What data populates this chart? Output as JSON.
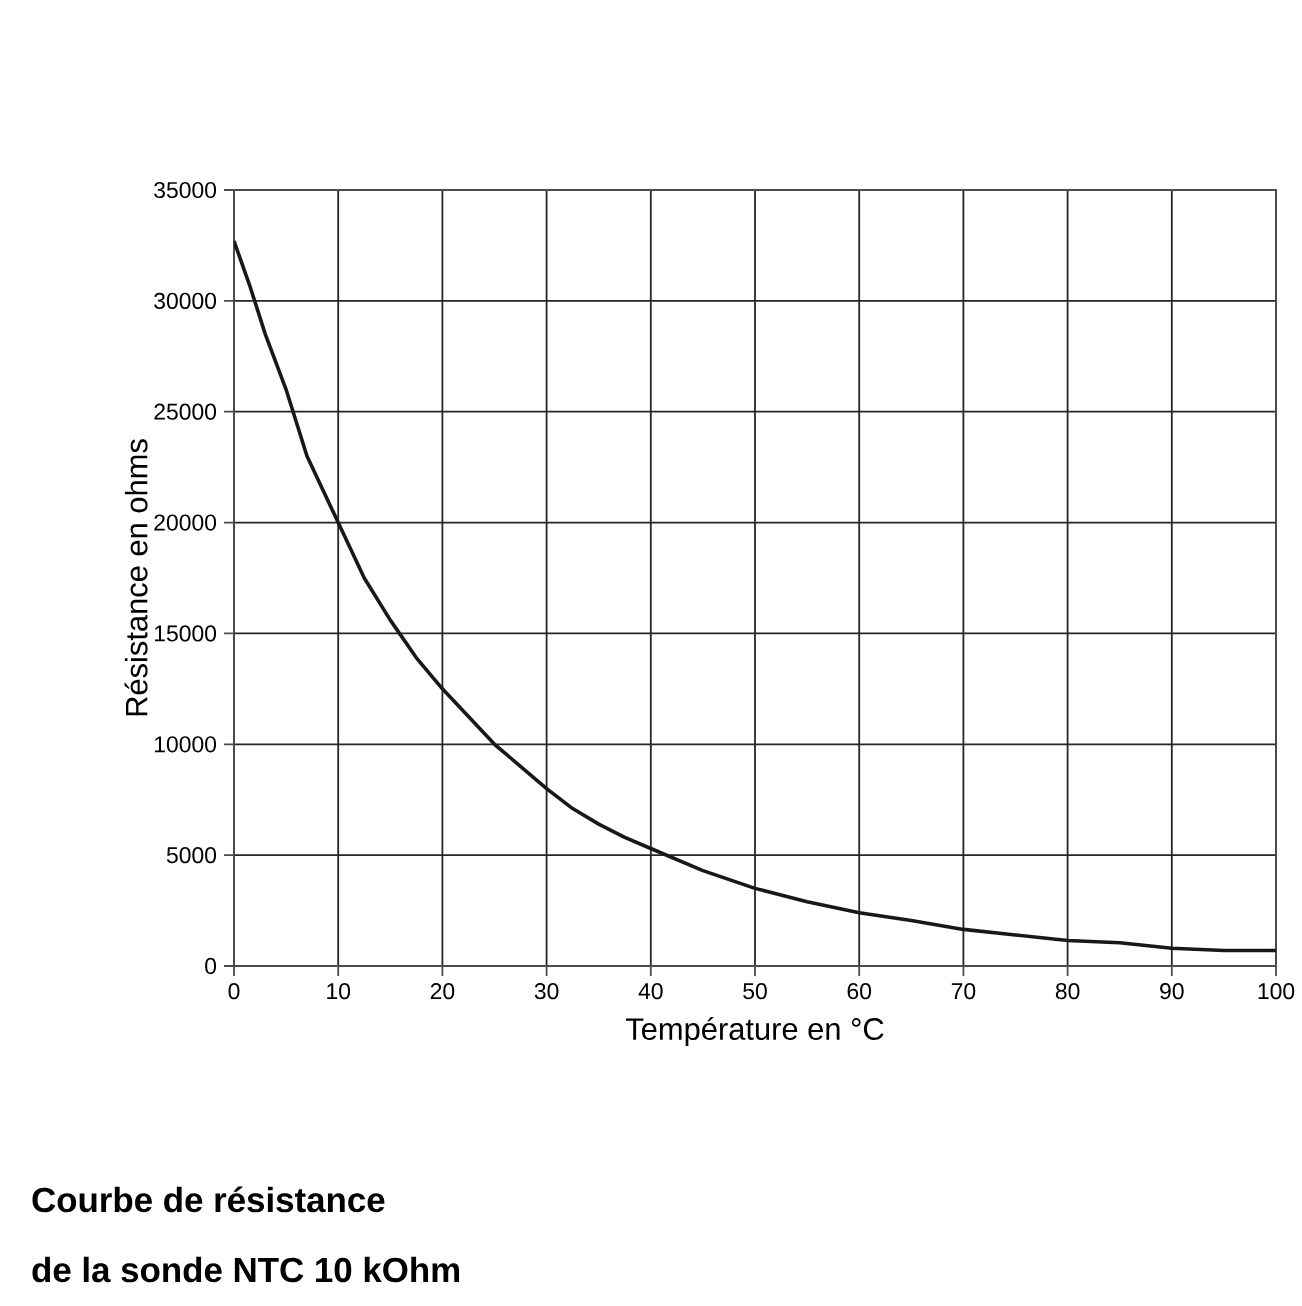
{
  "chart_data": {
    "type": "line",
    "title": "Courbe de résistance",
    "subtitle": "de la sonde NTC 10 kOhm",
    "xlabel": "Température en °C",
    "ylabel": "Résistance en ohms",
    "x": [
      0,
      1.5,
      3,
      5,
      7,
      10,
      12.5,
      15,
      17.5,
      20,
      25,
      30,
      32.5,
      35,
      37.5,
      40,
      45,
      50,
      55,
      60,
      65,
      70,
      75,
      80,
      85,
      90,
      95,
      100
    ],
    "series": [
      {
        "color": "#1a1718",
        "values": [
          32700,
          30700,
          28500,
          26000,
          23000,
          20000,
          17500,
          15600,
          13900,
          12500,
          10000,
          8000,
          7100,
          6400,
          5800,
          5300,
          4300,
          3500,
          2900,
          2400,
          2050,
          1650,
          1400,
          1150,
          1050,
          800,
          700,
          700
        ]
      }
    ],
    "xlim": [
      0,
      100
    ],
    "ylim": [
      0,
      35000
    ],
    "xticks": [
      0,
      10,
      20,
      30,
      40,
      50,
      60,
      70,
      80,
      90,
      100
    ],
    "yticks": [
      0,
      5000,
      10000,
      15000,
      20000,
      25000,
      30000,
      35000
    ],
    "grid": true,
    "marker": "none",
    "line_style": "solid"
  }
}
